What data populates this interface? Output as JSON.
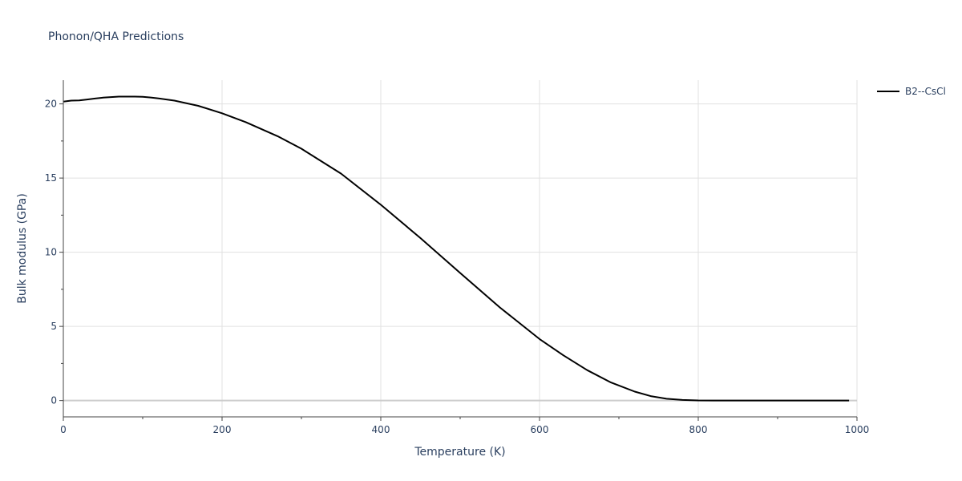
{
  "chart_data": {
    "type": "line",
    "title": "Phonon/QHA Predictions",
    "xlabel": "Temperature (K)",
    "ylabel": "Bulk modulus (GPa)",
    "xlim": [
      0,
      1000
    ],
    "ylim": [
      -1.1,
      21.6
    ],
    "x_ticks": [
      0,
      200,
      400,
      600,
      800,
      1000
    ],
    "y_ticks": [
      0,
      5,
      10,
      15,
      20
    ],
    "grid": true,
    "legend_position": "top-right",
    "series": [
      {
        "name": "B2--CsCl",
        "color": "#000000",
        "x": [
          0,
          10,
          20,
          30,
          40,
          50,
          60,
          70,
          80,
          90,
          100,
          110,
          120,
          140,
          170,
          200,
          230,
          270,
          300,
          350,
          400,
          450,
          500,
          550,
          600,
          630,
          660,
          690,
          720,
          740,
          760,
          780,
          800,
          820,
          850,
          900,
          950,
          990
        ],
        "y": [
          20.15,
          20.22,
          20.24,
          20.3,
          20.36,
          20.42,
          20.46,
          20.49,
          20.49,
          20.49,
          20.48,
          20.43,
          20.37,
          20.22,
          19.87,
          19.37,
          18.77,
          17.82,
          16.98,
          15.3,
          13.2,
          10.95,
          8.6,
          6.28,
          4.15,
          3.05,
          2.05,
          1.22,
          0.6,
          0.3,
          0.12,
          0.04,
          0.01,
          0.0,
          0.0,
          0.0,
          0.0,
          0.0
        ]
      }
    ]
  }
}
